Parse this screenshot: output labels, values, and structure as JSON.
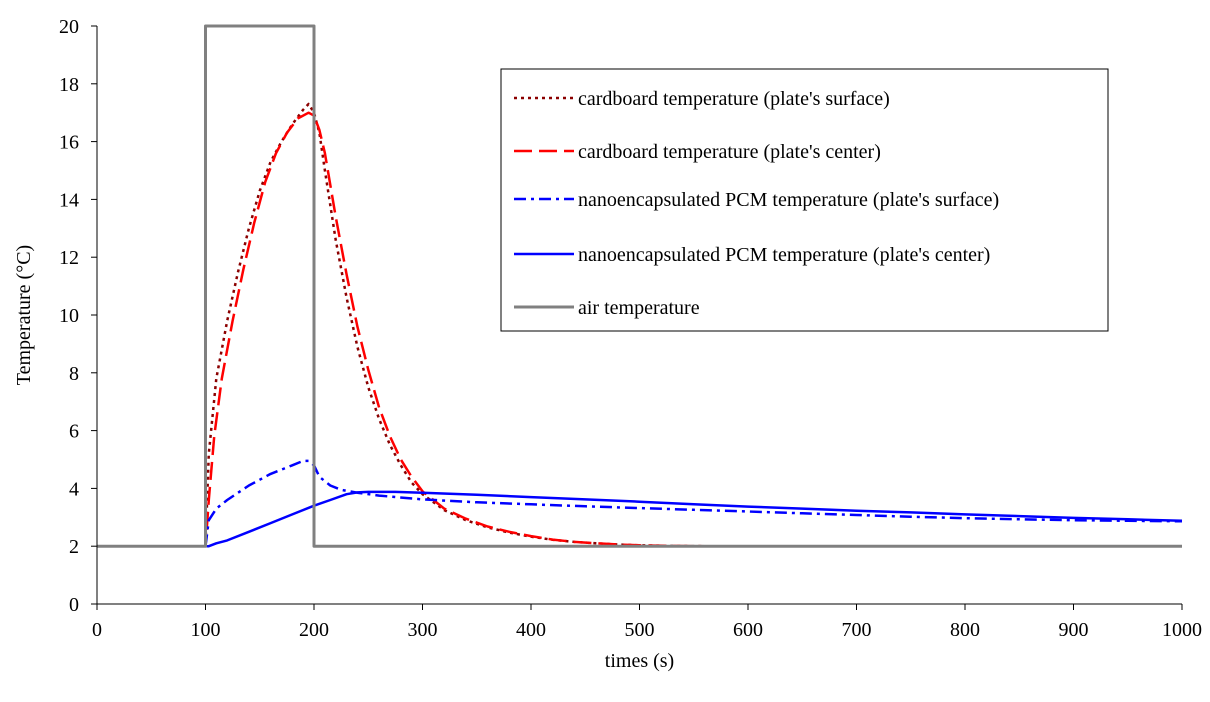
{
  "chart_data": {
    "type": "line",
    "title": "",
    "xlabel": "times (s)",
    "ylabel": "Temperature (°C)",
    "xlim": [
      0,
      1000
    ],
    "ylim": [
      0,
      20
    ],
    "xticks": [
      0,
      100,
      200,
      300,
      400,
      500,
      600,
      700,
      800,
      900,
      1000
    ],
    "yticks": [
      0,
      2,
      4,
      6,
      8,
      10,
      12,
      14,
      16,
      18,
      20
    ],
    "grid": false,
    "legend_position": "top-right",
    "series": [
      {
        "name": "cardboard temperature (plate's surface)",
        "color": "#8B0000",
        "dash": "dotted",
        "x": [
          0,
          100,
          103,
          110,
          120,
          130,
          140,
          150,
          160,
          170,
          180,
          190,
          195,
          200,
          205,
          210,
          220,
          230,
          240,
          250,
          260,
          270,
          280,
          290,
          300,
          320,
          340,
          360,
          380,
          400,
          420,
          440,
          460,
          480,
          500,
          530,
          560
        ],
        "y": [
          2,
          2,
          5.2,
          7.8,
          9.8,
          11.5,
          13.0,
          14.3,
          15.3,
          16.0,
          16.6,
          17.1,
          17.3,
          17.0,
          16.3,
          15.0,
          12.6,
          10.6,
          8.9,
          7.5,
          6.4,
          5.5,
          4.8,
          4.2,
          3.8,
          3.25,
          2.9,
          2.65,
          2.47,
          2.33,
          2.22,
          2.15,
          2.1,
          2.06,
          2.03,
          2.01,
          2.0
        ]
      },
      {
        "name": "cardboard temperature (plate's center)",
        "color": "#FF0000",
        "dash": "dashed",
        "x": [
          0,
          100,
          103,
          108,
          115,
          125,
          135,
          145,
          155,
          165,
          175,
          185,
          195,
          200,
          205,
          210,
          220,
          230,
          240,
          250,
          260,
          270,
          280,
          290,
          300,
          320,
          340,
          360,
          380,
          400,
          420,
          440,
          460,
          480,
          500,
          530,
          560
        ],
        "y": [
          2,
          2,
          3.6,
          5.8,
          7.8,
          9.8,
          11.6,
          13.2,
          14.6,
          15.6,
          16.3,
          16.8,
          17.0,
          16.9,
          16.4,
          15.6,
          13.4,
          11.4,
          9.6,
          8.1,
          6.8,
          5.8,
          5.0,
          4.4,
          3.9,
          3.3,
          2.95,
          2.68,
          2.5,
          2.35,
          2.23,
          2.15,
          2.1,
          2.06,
          2.03,
          2.01,
          2.0
        ]
      },
      {
        "name": "nanoencapsulated PCM temperature (plate's surface)",
        "color": "#0000FF",
        "dash": "dashdot",
        "x": [
          100,
          103,
          110,
          120,
          130,
          140,
          150,
          160,
          170,
          180,
          190,
          195,
          200,
          205,
          215,
          225,
          240,
          260,
          300,
          350,
          400,
          450,
          500,
          550,
          600,
          650,
          700,
          750,
          800,
          850,
          900,
          950,
          1000
        ],
        "y": [
          2.0,
          2.9,
          3.3,
          3.6,
          3.85,
          4.1,
          4.3,
          4.5,
          4.65,
          4.8,
          4.95,
          4.95,
          4.8,
          4.4,
          4.1,
          3.95,
          3.85,
          3.75,
          3.62,
          3.52,
          3.45,
          3.38,
          3.32,
          3.26,
          3.2,
          3.14,
          3.08,
          3.02,
          2.97,
          2.93,
          2.9,
          2.88,
          2.86
        ]
      },
      {
        "name": "nanoencapsulated PCM temperature (plate's center)",
        "color": "#0000FF",
        "dash": "solid",
        "x": [
          100,
          103,
          110,
          120,
          140,
          160,
          180,
          200,
          215,
          230,
          240,
          250,
          275,
          300,
          350,
          400,
          450,
          500,
          550,
          600,
          650,
          700,
          750,
          800,
          850,
          900,
          950,
          1000
        ],
        "y": [
          2.0,
          2.0,
          2.1,
          2.2,
          2.5,
          2.8,
          3.1,
          3.4,
          3.6,
          3.8,
          3.86,
          3.88,
          3.88,
          3.85,
          3.78,
          3.7,
          3.62,
          3.54,
          3.45,
          3.37,
          3.3,
          3.23,
          3.17,
          3.1,
          3.04,
          2.98,
          2.93,
          2.88
        ]
      },
      {
        "name": "air temperature",
        "color": "#808080",
        "dash": "solid",
        "x": [
          0,
          100,
          100,
          200,
          200,
          1000
        ],
        "y": [
          2,
          2,
          20,
          20,
          2,
          2
        ]
      }
    ]
  }
}
